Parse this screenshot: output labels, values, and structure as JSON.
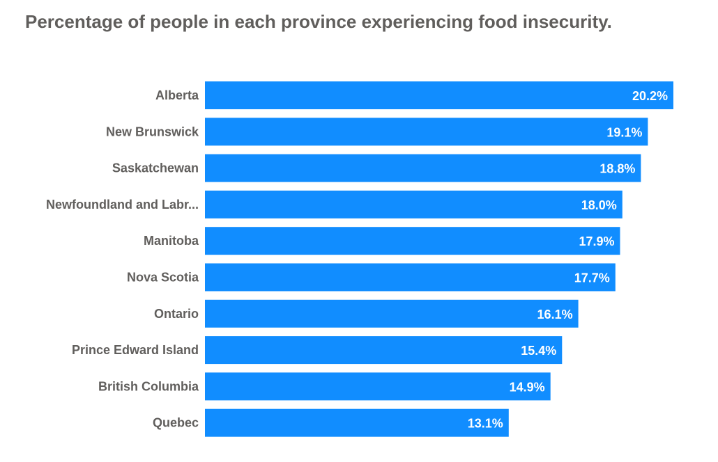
{
  "title": "Percentage of people in each province experiencing food insecurity.",
  "colors": {
    "bar": "#118dff",
    "title": "#605e5c",
    "category_label": "#605e5c",
    "value_label": "#ffffff"
  },
  "chart_data": {
    "type": "bar",
    "orientation": "horizontal",
    "title": "Percentage of people in each province experiencing food insecurity.",
    "xlabel": "",
    "ylabel": "",
    "categories": [
      "Alberta",
      "New Brunswick",
      "Saskatchewan",
      "Newfoundland and Labr...",
      "Manitoba",
      "Nova Scotia",
      "Ontario",
      "Prince Edward Island",
      "British Columbia",
      "Quebec"
    ],
    "values": [
      20.2,
      19.1,
      18.8,
      18.0,
      17.9,
      17.7,
      16.1,
      15.4,
      14.9,
      13.1
    ],
    "data_labels": [
      "20.2%",
      "19.1%",
      "18.8%",
      "18.0%",
      "17.9%",
      "17.7%",
      "16.1%",
      "15.4%",
      "14.9%",
      "13.1%"
    ],
    "xlim": [
      0,
      20.2
    ],
    "grid": false,
    "legend": "none"
  }
}
